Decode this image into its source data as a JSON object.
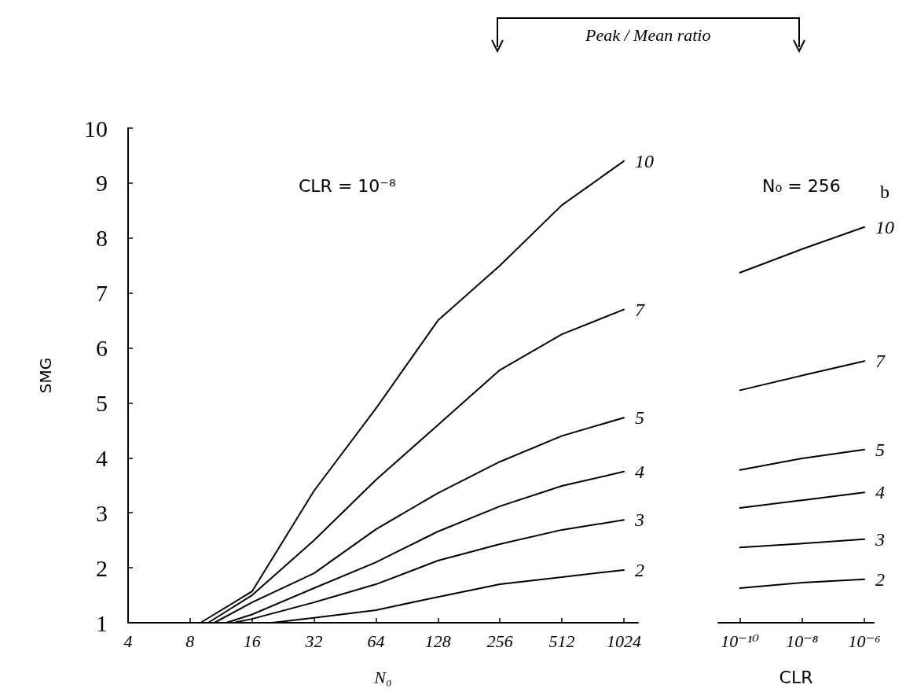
{
  "chart_data": [
    {
      "type": "line",
      "title": "CLR = 10⁻⁸",
      "xlabel": "N₀",
      "ylabel": "SMG",
      "legend_title": "Peak / Mean ratio",
      "log": "x",
      "xlim": [
        4,
        1200
      ],
      "xticks": [
        4,
        8,
        16,
        32,
        64,
        128,
        256,
        512,
        1024
      ],
      "ylim": [
        1,
        10
      ],
      "yticks": [
        1,
        2,
        3,
        4,
        5,
        6,
        7,
        8,
        9,
        10
      ],
      "grid": false,
      "legend": false,
      "marker": "none",
      "line_style": "solid",
      "series": [
        {
          "name": "10",
          "color": "#000000",
          "x": [
            9,
            16,
            32,
            64,
            128,
            256,
            512,
            1024
          ],
          "values": [
            1,
            1.57,
            3.4,
            4.9,
            6.5,
            7.5,
            8.6,
            9.4
          ]
        },
        {
          "name": "7",
          "color": "#000000",
          "x": [
            9.8,
            16,
            32,
            64,
            128,
            256,
            512,
            1024
          ],
          "values": [
            1,
            1.5,
            2.5,
            3.6,
            4.6,
            5.6,
            6.25,
            6.7
          ]
        },
        {
          "name": "5",
          "color": "#000000",
          "x": [
            10.5,
            16,
            32,
            64,
            128,
            256,
            512,
            1024
          ],
          "values": [
            1,
            1.37,
            1.9,
            2.7,
            3.36,
            3.93,
            4.4,
            4.73
          ]
        },
        {
          "name": "4",
          "color": "#000000",
          "x": [
            12,
            16,
            32,
            64,
            128,
            256,
            512,
            1024
          ],
          "values": [
            1,
            1.15,
            1.63,
            2.1,
            2.66,
            3.12,
            3.49,
            3.75
          ]
        },
        {
          "name": "3",
          "color": "#000000",
          "x": [
            13,
            16,
            32,
            64,
            128,
            256,
            512,
            1024
          ],
          "values": [
            1,
            1.07,
            1.37,
            1.7,
            2.13,
            2.43,
            2.69,
            2.87
          ]
        },
        {
          "name": "2",
          "color": "#000000",
          "x": [
            20,
            32,
            64,
            128,
            256,
            512,
            1024
          ],
          "values": [
            1,
            1.09,
            1.23,
            1.47,
            1.7,
            1.83,
            1.96
          ]
        }
      ]
    },
    {
      "type": "line",
      "title": "N₀ = 256",
      "xlabel": "CLR",
      "annotations": [
        "b"
      ],
      "log": "x",
      "xlim": [
        2e-11,
        2e-06
      ],
      "xticks": [
        {
          "value": 1e-10,
          "label": "10⁻¹⁰"
        },
        {
          "value": 1e-08,
          "label": "10⁻⁸"
        },
        {
          "value": 1e-06,
          "label": "10⁻⁶"
        }
      ],
      "ylim": [
        1,
        10
      ],
      "tick_labels": "x",
      "grid": false,
      "legend": false,
      "marker": "none",
      "line_style": "solid",
      "series": [
        {
          "name": "10",
          "color": "#000000",
          "x": [
            1e-10,
            1e-08,
            1e-06
          ],
          "values": [
            7.37,
            7.8,
            8.2
          ]
        },
        {
          "name": "7",
          "color": "#000000",
          "x": [
            1e-10,
            1e-08,
            1e-06
          ],
          "values": [
            5.23,
            5.5,
            5.76
          ]
        },
        {
          "name": "5",
          "color": "#000000",
          "x": [
            1e-10,
            1e-08,
            1e-06
          ],
          "values": [
            3.78,
            3.99,
            4.15
          ]
        },
        {
          "name": "4",
          "color": "#000000",
          "x": [
            1e-10,
            1e-08,
            1e-06
          ],
          "values": [
            3.09,
            3.23,
            3.37
          ]
        },
        {
          "name": "3",
          "color": "#000000",
          "x": [
            1e-10,
            1e-08,
            1e-06
          ],
          "values": [
            2.37,
            2.44,
            2.52
          ]
        },
        {
          "name": "2",
          "color": "#000000",
          "x": [
            1e-10,
            1e-08,
            1e-06
          ],
          "values": [
            1.63,
            1.73,
            1.79
          ]
        }
      ]
    }
  ]
}
